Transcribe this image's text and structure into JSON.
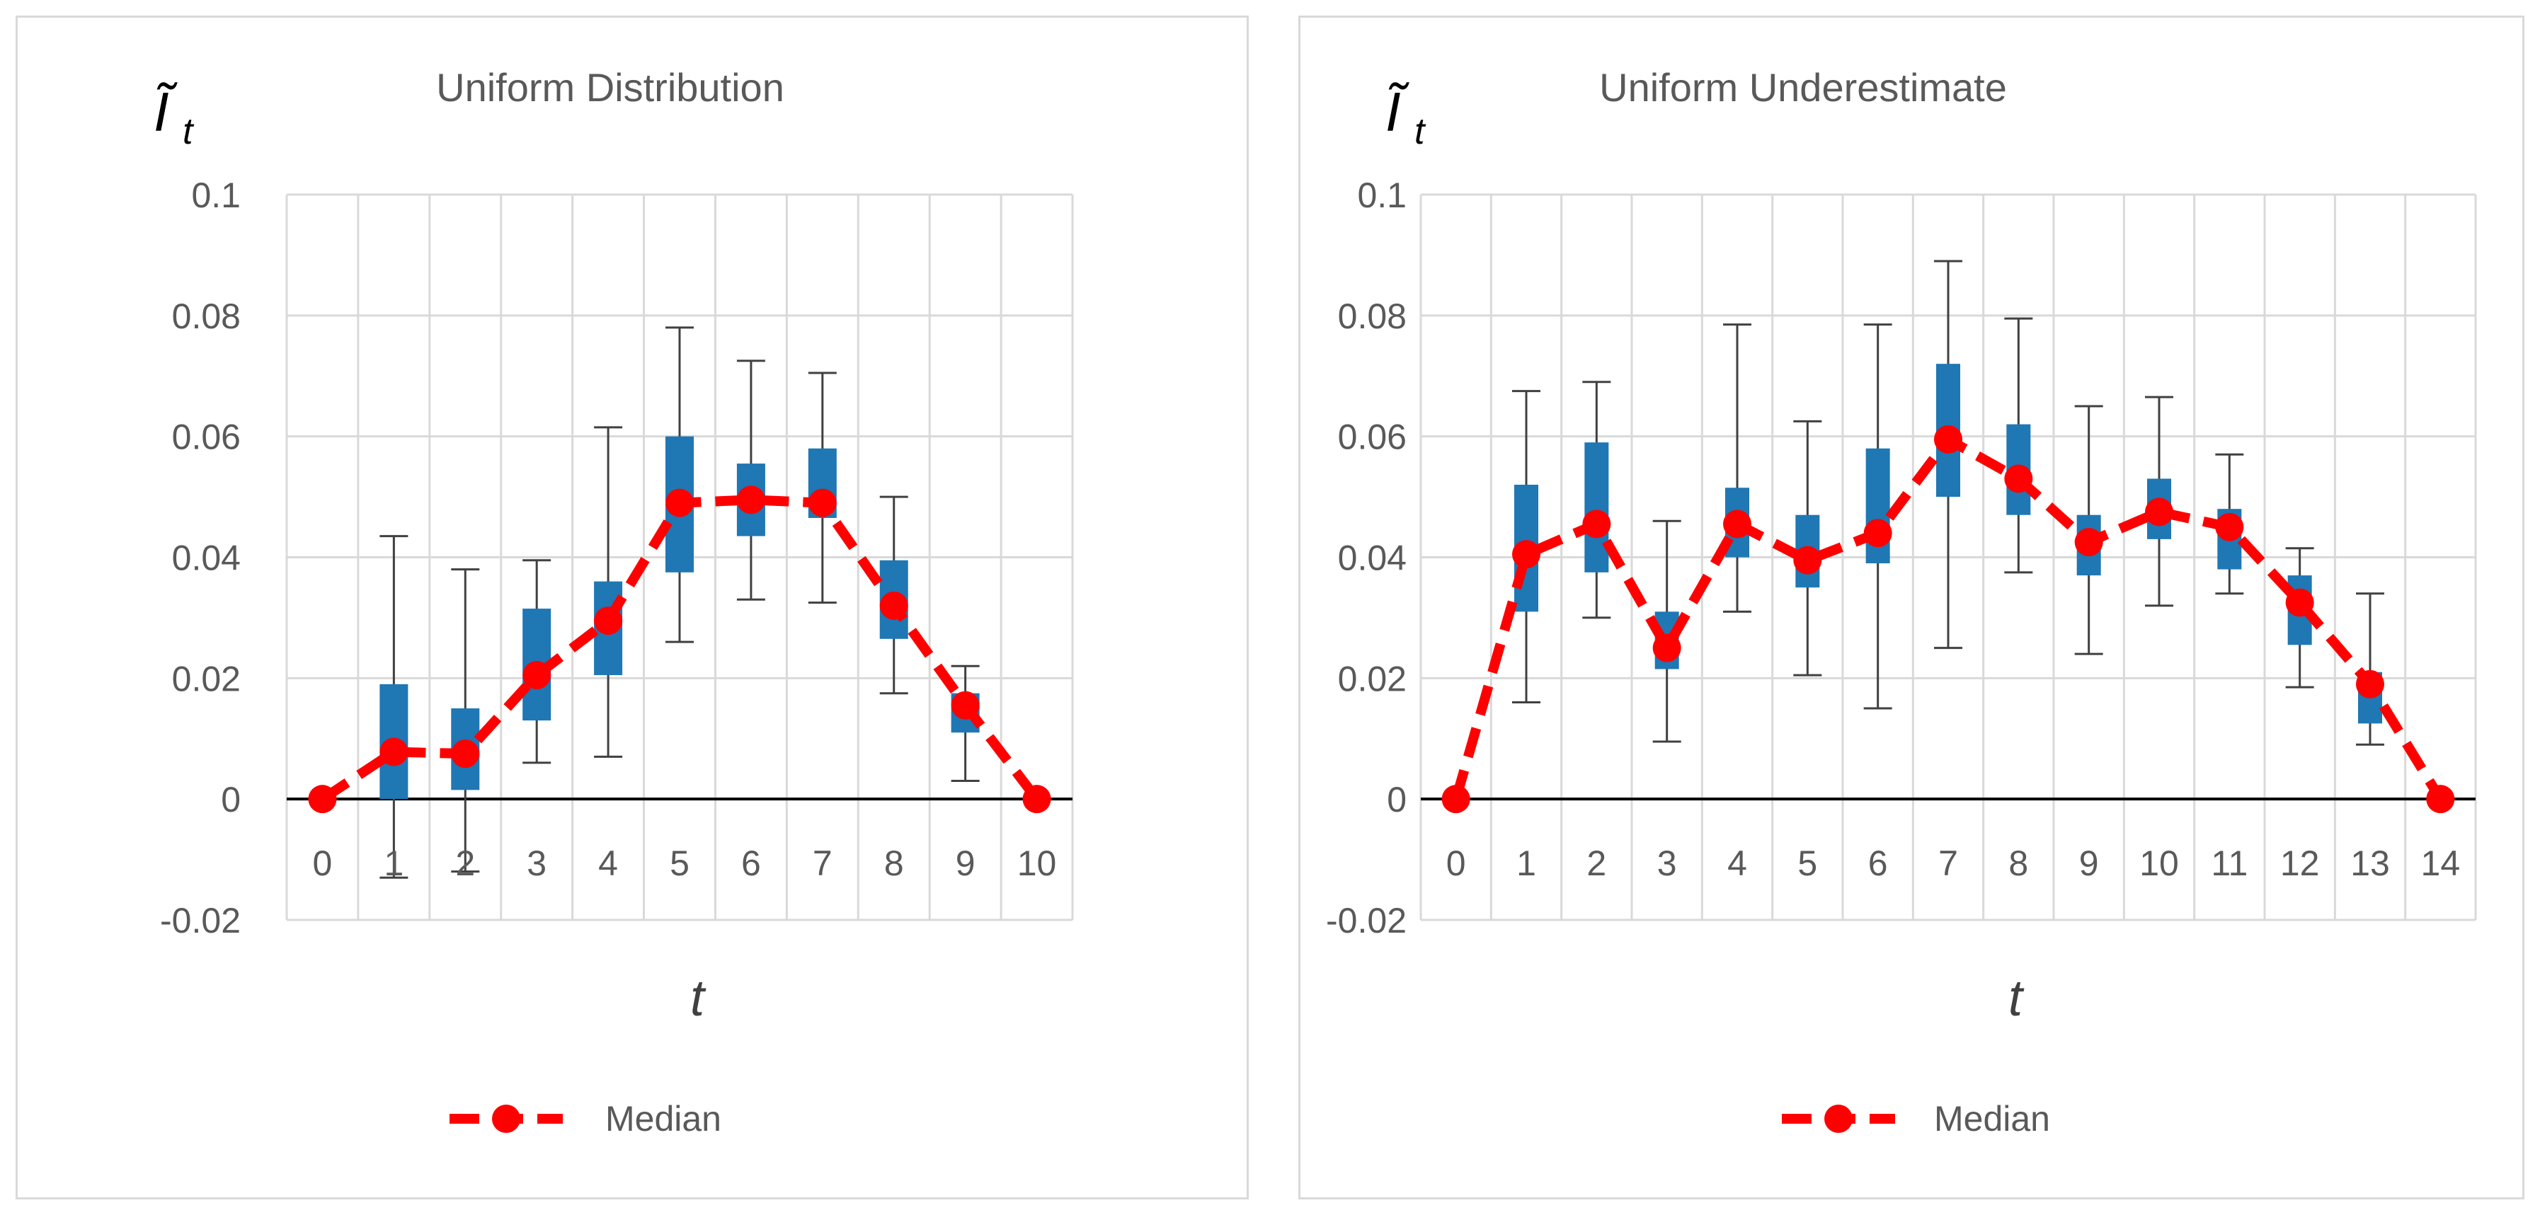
{
  "chart_data": [
    {
      "type": "box",
      "title": "Uniform Distribution",
      "ylabel": "Ĩ",
      "ylabel_sub": "t",
      "xlabel": "t",
      "ylim": [
        -0.02,
        0.1
      ],
      "y_ticks": [
        0.1,
        0.08,
        0.06,
        0.04,
        0.02,
        0,
        -0.02
      ],
      "y_tick_labels": [
        "0.1",
        "0.08",
        "0.06",
        "0.04",
        "0.02",
        "0",
        "-0.02"
      ],
      "categories": [
        "0",
        "1",
        "2",
        "3",
        "4",
        "5",
        "6",
        "7",
        "8",
        "9",
        "10"
      ],
      "boxes": [
        {
          "min": 0,
          "q1": 0,
          "q3": 0,
          "max": 0
        },
        {
          "min": -0.013,
          "q1": 0.0,
          "q3": 0.019,
          "max": 0.0435
        },
        {
          "min": -0.012,
          "q1": 0.0015,
          "q3": 0.015,
          "max": 0.038
        },
        {
          "min": 0.006,
          "q1": 0.013,
          "q3": 0.0315,
          "max": 0.0395
        },
        {
          "min": 0.007,
          "q1": 0.0205,
          "q3": 0.036,
          "max": 0.0615
        },
        {
          "min": 0.026,
          "q1": 0.0375,
          "q3": 0.06,
          "max": 0.078
        },
        {
          "min": 0.033,
          "q1": 0.0435,
          "q3": 0.0555,
          "max": 0.0725
        },
        {
          "min": 0.0325,
          "q1": 0.0465,
          "q3": 0.058,
          "max": 0.0705
        },
        {
          "min": 0.0175,
          "q1": 0.0265,
          "q3": 0.0395,
          "max": 0.05
        },
        {
          "min": 0.003,
          "q1": 0.011,
          "q3": 0.0175,
          "max": 0.022
        },
        {
          "min": 0,
          "q1": 0,
          "q3": 0,
          "max": 0
        }
      ],
      "series": [
        {
          "name": "Median",
          "values": [
            0,
            0.0078,
            0.0075,
            0.0205,
            0.0295,
            0.049,
            0.0495,
            0.049,
            0.032,
            0.0155,
            0
          ]
        }
      ],
      "legend": "bottom",
      "grid": true,
      "colors": {
        "box": "#1f77b4",
        "median": "#ff0000",
        "whisker": "#404040",
        "grid": "#d9d9d9",
        "axis": "#000000",
        "text": "#595959"
      }
    },
    {
      "type": "box",
      "title": "Uniform Underestimate",
      "ylabel": "Ĩ",
      "ylabel_sub": "t",
      "xlabel": "t",
      "ylim": [
        -0.02,
        0.1
      ],
      "y_ticks": [
        0.1,
        0.08,
        0.06,
        0.04,
        0.02,
        0,
        -0.02
      ],
      "y_tick_labels": [
        "0.1",
        "0.08",
        "0.06",
        "0.04",
        "0.02",
        "0",
        "-0.02"
      ],
      "categories": [
        "0",
        "1",
        "2",
        "3",
        "4",
        "5",
        "6",
        "7",
        "8",
        "9",
        "10",
        "11",
        "12",
        "13",
        "14"
      ],
      "boxes": [
        {
          "min": 0,
          "q1": 0,
          "q3": 0,
          "max": 0
        },
        {
          "min": 0.016,
          "q1": 0.031,
          "q3": 0.052,
          "max": 0.0675
        },
        {
          "min": 0.03,
          "q1": 0.0375,
          "q3": 0.059,
          "max": 0.069
        },
        {
          "min": 0.0095,
          "q1": 0.0215,
          "q3": 0.031,
          "max": 0.046
        },
        {
          "min": 0.031,
          "q1": 0.04,
          "q3": 0.0515,
          "max": 0.0785
        },
        {
          "min": 0.0205,
          "q1": 0.035,
          "q3": 0.047,
          "max": 0.0625
        },
        {
          "min": 0.015,
          "q1": 0.039,
          "q3": 0.058,
          "max": 0.0785
        },
        {
          "min": 0.025,
          "q1": 0.05,
          "q3": 0.072,
          "max": 0.089
        },
        {
          "min": 0.0375,
          "q1": 0.047,
          "q3": 0.062,
          "max": 0.0795
        },
        {
          "min": 0.024,
          "q1": 0.037,
          "q3": 0.047,
          "max": 0.065
        },
        {
          "min": 0.032,
          "q1": 0.043,
          "q3": 0.053,
          "max": 0.0665
        },
        {
          "min": 0.034,
          "q1": 0.038,
          "q3": 0.048,
          "max": 0.057
        },
        {
          "min": 0.0185,
          "q1": 0.0255,
          "q3": 0.037,
          "max": 0.0415
        },
        {
          "min": 0.009,
          "q1": 0.0125,
          "q3": 0.021,
          "max": 0.034
        },
        {
          "min": 0,
          "q1": 0,
          "q3": 0,
          "max": 0
        }
      ],
      "series": [
        {
          "name": "Median",
          "values": [
            0,
            0.0405,
            0.0455,
            0.025,
            0.0455,
            0.0395,
            0.044,
            0.0595,
            0.053,
            0.0425,
            0.0475,
            0.045,
            0.0325,
            0.019,
            0
          ]
        }
      ],
      "legend": "bottom",
      "grid": true,
      "colors": {
        "box": "#1f77b4",
        "median": "#ff0000",
        "whisker": "#404040",
        "grid": "#d9d9d9",
        "axis": "#000000",
        "text": "#595959"
      }
    }
  ]
}
